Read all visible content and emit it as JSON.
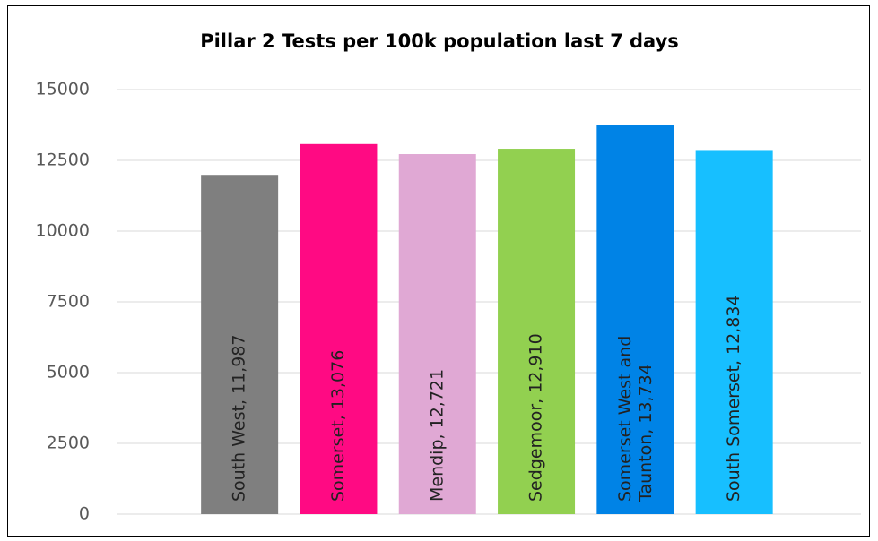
{
  "chart_data": {
    "type": "bar",
    "title": "Pillar 2 Tests per 100k population last 7 days",
    "values": [
      11987,
      13076,
      12721,
      12910,
      13734,
      12834
    ],
    "value_labels": [
      "South West, 11,987",
      "Somerset, 13,076",
      "Mendip, 12,721",
      "Sedgemoor, 12,910",
      "Somerset West and Taunton, 13,734",
      "South Somerset, 12,834"
    ],
    "colors": [
      "#7f7f7f",
      "#ff0a83",
      "#e0a8d4",
      "#92d050",
      "#0083e6",
      "#17bfff"
    ],
    "ylim": [
      0,
      15000
    ],
    "yticks": [
      0,
      2500,
      5000,
      7500,
      10000,
      12500,
      15000
    ],
    "grid": true
  }
}
